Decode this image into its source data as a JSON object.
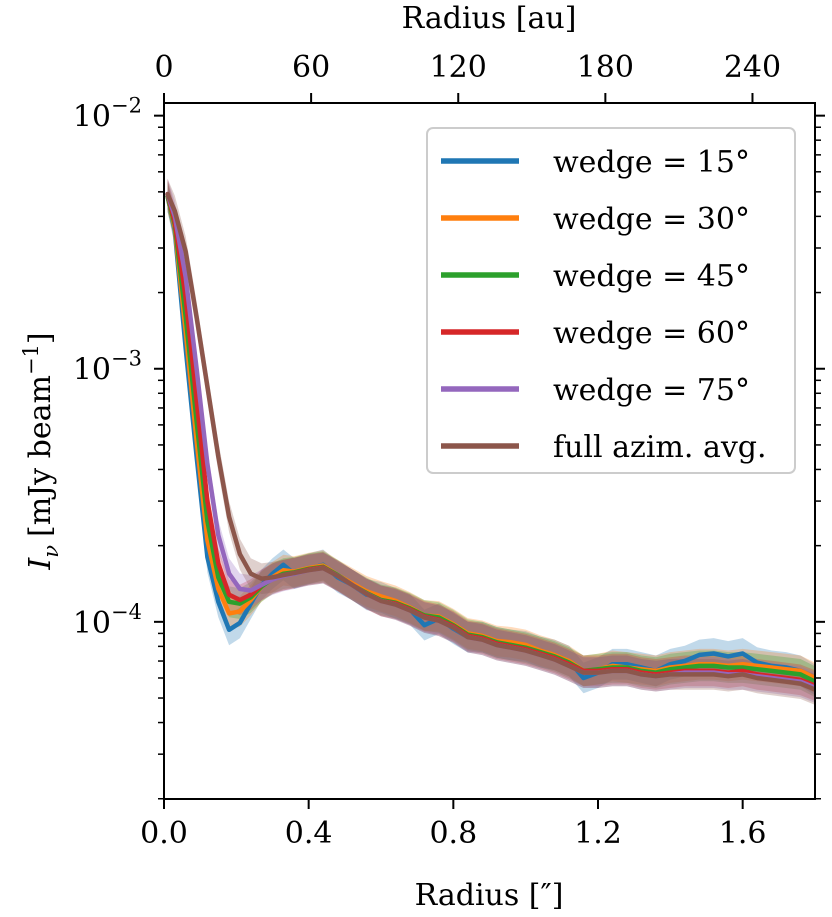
{
  "chart_data": {
    "type": "line",
    "title": "",
    "xlabel": "Radius [″]",
    "ylabel": "Iν [mJy beam⁻¹]",
    "ylabel_parts": {
      "symbol": "I",
      "subscript": "ν",
      "units": "[mJy beam",
      "exponent": "−1",
      "close": "]"
    },
    "top_xlabel": "Radius [au]",
    "xlim": [
      0.0,
      1.8
    ],
    "ylim_log10": [
      -4.7,
      -1.95
    ],
    "yscale": "log",
    "x_ticks": [
      0.0,
      0.4,
      0.8,
      1.2,
      1.6
    ],
    "x_tick_labels": [
      "0.0",
      "0.4",
      "0.8",
      "1.2",
      "1.6"
    ],
    "top_ticks_au": [
      0,
      60,
      120,
      180,
      240
    ],
    "top_tick_labels": [
      "0",
      "60",
      "120",
      "180",
      "240"
    ],
    "au_per_arcsec": 147.5,
    "y_ticks_exp": [
      -4,
      -3,
      -2
    ],
    "y_tick_base": "10",
    "y_tick_exponents": [
      "−4",
      "−3",
      "−2"
    ],
    "legend_position": "top-right",
    "x": [
      0.01,
      0.03,
      0.06,
      0.09,
      0.12,
      0.15,
      0.18,
      0.21,
      0.24,
      0.27,
      0.3,
      0.33,
      0.36,
      0.4,
      0.44,
      0.48,
      0.52,
      0.56,
      0.6,
      0.64,
      0.68,
      0.72,
      0.76,
      0.8,
      0.84,
      0.88,
      0.92,
      0.96,
      1.0,
      1.04,
      1.08,
      1.12,
      1.16,
      1.2,
      1.24,
      1.28,
      1.32,
      1.36,
      1.4,
      1.44,
      1.48,
      1.52,
      1.56,
      1.6,
      1.64,
      1.68,
      1.72,
      1.76,
      1.8
    ],
    "series": [
      {
        "name": "wedge = 15°",
        "color": "#1f77b4",
        "values": [
          0.0048,
          0.0035,
          0.0012,
          0.00045,
          0.00018,
          0.00012,
          9.3e-05,
          9.9e-05,
          0.000118,
          0.00014,
          0.000155,
          0.000168,
          0.000155,
          0.000162,
          0.000168,
          0.00015,
          0.00014,
          0.000128,
          0.000125,
          0.000118,
          0.000112,
          9.7e-05,
          0.000103,
          9.4e-05,
          8.7e-05,
          8.7e-05,
          8.3e-05,
          8.1e-05,
          8e-05,
          7.6e-05,
          7.4e-05,
          7e-05,
          6e-05,
          6.3e-05,
          6.8e-05,
          6.8e-05,
          6.6e-05,
          6.4e-05,
          6.8e-05,
          7e-05,
          7.4e-05,
          7.5e-05,
          7.3e-05,
          7.5e-05,
          6.9e-05,
          6.7e-05,
          6.6e-05,
          6.4e-05,
          5.9e-05
        ]
      },
      {
        "name": "wedge = 30°",
        "color": "#ff7f0e",
        "values": [
          0.0048,
          0.0036,
          0.0014,
          0.00052,
          0.00021,
          0.000135,
          0.000108,
          0.00011,
          0.000122,
          0.000138,
          0.00015,
          0.00016,
          0.000158,
          0.000163,
          0.000167,
          0.000153,
          0.000142,
          0.000132,
          0.000126,
          0.000121,
          0.000114,
          0.000106,
          0.000105,
          9.8e-05,
          9e-05,
          8.8e-05,
          8.4e-05,
          8.3e-05,
          8.1e-05,
          7.7e-05,
          7.4e-05,
          7e-05,
          6.4e-05,
          6.5e-05,
          6.7e-05,
          6.6e-05,
          6.5e-05,
          6.4e-05,
          6.6e-05,
          6.7e-05,
          6.8e-05,
          6.8e-05,
          6.7e-05,
          6.8e-05,
          6.7e-05,
          6.6e-05,
          6.5e-05,
          6.4e-05,
          6e-05
        ]
      },
      {
        "name": "wedge = 45°",
        "color": "#2ca02c",
        "values": [
          0.0048,
          0.0037,
          0.0016,
          0.00062,
          0.00025,
          0.00015,
          0.00012,
          0.000118,
          0.000125,
          0.000138,
          0.000148,
          0.000155,
          0.000157,
          0.000162,
          0.000165,
          0.000153,
          0.00014,
          0.00013,
          0.000122,
          0.000119,
          0.000113,
          0.000106,
          0.000104,
          9.7e-05,
          8.9e-05,
          8.7e-05,
          8.3e-05,
          8.1e-05,
          7.9e-05,
          7.6e-05,
          7.3e-05,
          6.9e-05,
          6.4e-05,
          6.5e-05,
          6.6e-05,
          6.6e-05,
          6.4e-05,
          6.3e-05,
          6.5e-05,
          6.6e-05,
          6.7e-05,
          6.7e-05,
          6.6e-05,
          6.6e-05,
          6.5e-05,
          6.4e-05,
          6.3e-05,
          6.2e-05,
          5.8e-05
        ]
      },
      {
        "name": "wedge = 60°",
        "color": "#d62728",
        "values": [
          0.0049,
          0.0038,
          0.0019,
          0.00075,
          0.0003,
          0.00017,
          0.000128,
          0.000122,
          0.000128,
          0.00014,
          0.000148,
          0.000153,
          0.000156,
          0.000161,
          0.000164,
          0.000152,
          0.00014,
          0.000129,
          0.000121,
          0.000118,
          0.000112,
          0.000105,
          0.000102,
          9.6e-05,
          8.8e-05,
          8.6e-05,
          8.2e-05,
          8e-05,
          7.8e-05,
          7.5e-05,
          7.2e-05,
          6.8e-05,
          6.4e-05,
          6.4e-05,
          6.5e-05,
          6.5e-05,
          6.3e-05,
          6.2e-05,
          6.3e-05,
          6.4e-05,
          6.4e-05,
          6.4e-05,
          6.3e-05,
          6.4e-05,
          6.2e-05,
          6.1e-05,
          6e-05,
          5.9e-05,
          5.6e-05
        ]
      },
      {
        "name": "wedge = 75°",
        "color": "#9467bd",
        "values": [
          0.0049,
          0.004,
          0.0023,
          0.001,
          0.00042,
          0.00022,
          0.000155,
          0.000135,
          0.000133,
          0.00014,
          0.000147,
          0.000152,
          0.000155,
          0.00016,
          0.000163,
          0.000152,
          0.00014,
          0.000129,
          0.000121,
          0.000117,
          0.000111,
          0.000104,
          0.000101,
          9.5e-05,
          8.7e-05,
          8.5e-05,
          8.1e-05,
          7.9e-05,
          7.7e-05,
          7.4e-05,
          7.1e-05,
          6.7e-05,
          6.3e-05,
          6.3e-05,
          6.4e-05,
          6.4e-05,
          6.2e-05,
          6.1e-05,
          6.2e-05,
          6.3e-05,
          6.3e-05,
          6.3e-05,
          6.2e-05,
          6.2e-05,
          6.1e-05,
          6e-05,
          5.9e-05,
          5.8e-05,
          5.5e-05
        ]
      },
      {
        "name": "full azim. avg.",
        "color": "#8c564b",
        "values": [
          0.0049,
          0.0042,
          0.0029,
          0.0016,
          0.00085,
          0.00045,
          0.00026,
          0.000185,
          0.000155,
          0.000148,
          0.00015,
          0.000153,
          0.000156,
          0.00016,
          0.000163,
          0.000152,
          0.00014,
          0.000129,
          0.000121,
          0.000117,
          0.000111,
          0.000104,
          0.000101,
          9.5e-05,
          8.7e-05,
          8.5e-05,
          8.1e-05,
          7.9e-05,
          7.7e-05,
          7.4e-05,
          7.1e-05,
          6.7e-05,
          6.3e-05,
          6.3e-05,
          6.4e-05,
          6.4e-05,
          6.2e-05,
          6.1e-05,
          6.2e-05,
          6.2e-05,
          6.2e-05,
          6.2e-05,
          6.1e-05,
          6.2e-05,
          6e-05,
          5.9e-05,
          5.8e-05,
          5.7e-05,
          5.4e-05
        ]
      }
    ]
  }
}
